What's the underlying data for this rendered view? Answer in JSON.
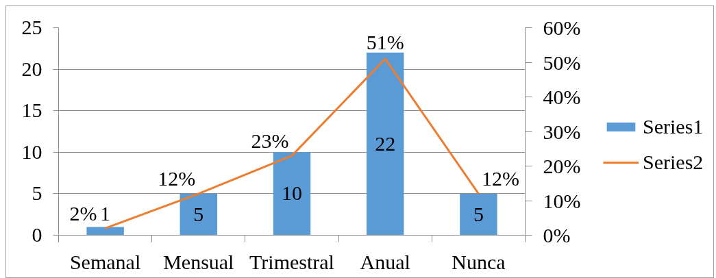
{
  "chart_data": {
    "type": "bar",
    "categories": [
      "Semanal",
      "Mensual",
      "Trimestral",
      "Anual",
      "Nunca"
    ],
    "series": [
      {
        "name": "Series1",
        "color": "#5b9bd5",
        "values": [
          1,
          5,
          10,
          22,
          5
        ],
        "value_labels": [
          "1",
          "5",
          "10",
          "22",
          "5"
        ]
      },
      {
        "name": "Series2",
        "type": "line",
        "axis": "y2",
        "color": "#ed7d31",
        "values": [
          2,
          12,
          23,
          51,
          12
        ],
        "value_labels": [
          "2%",
          "12%",
          "23%",
          "51%",
          "12%"
        ]
      }
    ],
    "ylim": [
      0,
      25
    ],
    "yticks": [
      0,
      5,
      10,
      15,
      20,
      25
    ],
    "y2lim": [
      0,
      60
    ],
    "y2ticks": [
      {
        "value": 0,
        "label": "0%"
      },
      {
        "value": 10,
        "label": "10%"
      },
      {
        "value": 20,
        "label": "20%"
      },
      {
        "value": 30,
        "label": "30%"
      },
      {
        "value": 40,
        "label": "40%"
      },
      {
        "value": 50,
        "label": "50%"
      },
      {
        "value": 60,
        "label": "60%"
      }
    ],
    "grid": "y",
    "legend": "right"
  }
}
